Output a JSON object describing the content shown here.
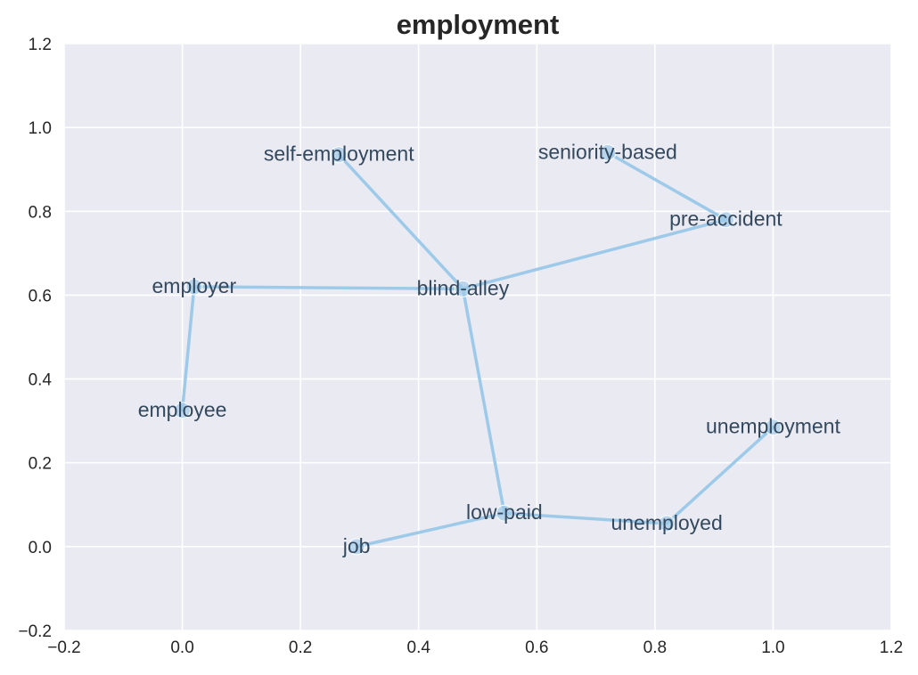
{
  "chart_data": {
    "type": "scatter",
    "title": "employment",
    "xlabel": "",
    "ylabel": "",
    "xlim": [
      -0.2,
      1.2
    ],
    "ylim": [
      -0.2,
      1.2
    ],
    "xticks": [
      "−0.2",
      "0.0",
      "0.2",
      "0.4",
      "0.6",
      "0.8",
      "1.0",
      "1.2"
    ],
    "yticks": [
      "−0.2",
      "0.0",
      "0.2",
      "0.4",
      "0.6",
      "0.8",
      "1.0",
      "1.2"
    ],
    "grid": true,
    "points": [
      {
        "label": "self-employment",
        "x": 0.265,
        "y": 0.935
      },
      {
        "label": "seniority-based",
        "x": 0.72,
        "y": 0.94
      },
      {
        "label": "pre-accident",
        "x": 0.92,
        "y": 0.78
      },
      {
        "label": "employer",
        "x": 0.02,
        "y": 0.62
      },
      {
        "label": "blind-alley",
        "x": 0.475,
        "y": 0.615
      },
      {
        "label": "employee",
        "x": 0.0,
        "y": 0.325
      },
      {
        "label": "unemployment",
        "x": 1.0,
        "y": 0.285
      },
      {
        "label": "low-paid",
        "x": 0.545,
        "y": 0.08
      },
      {
        "label": "unemployed",
        "x": 0.82,
        "y": 0.055
      },
      {
        "label": "job",
        "x": 0.295,
        "y": 0.0
      }
    ],
    "edges": [
      [
        "self-employment",
        "blind-alley"
      ],
      [
        "seniority-based",
        "pre-accident"
      ],
      [
        "pre-accident",
        "blind-alley"
      ],
      [
        "employer",
        "blind-alley"
      ],
      [
        "employer",
        "employee"
      ],
      [
        "blind-alley",
        "low-paid"
      ],
      [
        "low-paid",
        "job"
      ],
      [
        "low-paid",
        "unemployed"
      ],
      [
        "unemployed",
        "unemployment"
      ]
    ],
    "colors": {
      "background": "#eaeaf2",
      "grid": "#ffffff",
      "line": "#9ecae9",
      "marker": "#9ecae9",
      "label": "#34495e"
    }
  }
}
